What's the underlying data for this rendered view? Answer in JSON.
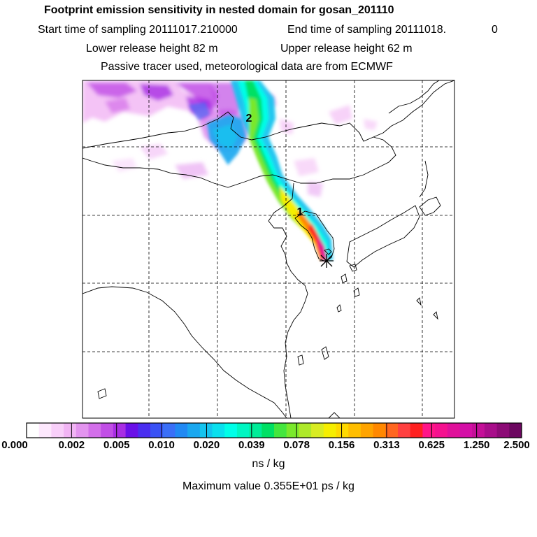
{
  "header": {
    "title": "Footprint emission sensitivity in nested domain for gosan_201110",
    "start_label": "Start time of sampling 20111017.210000",
    "end_label": "End time of sampling 20111018.",
    "end_value": "0",
    "lower_height": "Lower release height   82 m",
    "upper_height": "Upper release height   62 m",
    "tracer_note": "Passive tracer used, meteorological data are from ECMWF"
  },
  "map": {
    "markers": [
      {
        "label": "2",
        "kind": "age-class"
      },
      {
        "label": "1",
        "kind": "age-class"
      }
    ],
    "receptor": {
      "symbol": "asterisk",
      "name": "gosan"
    }
  },
  "colorbar": {
    "ticks": [
      "0.000",
      "0.002",
      "0.005",
      "0.010",
      "0.020",
      "0.039",
      "0.078",
      "0.156",
      "0.313",
      "0.625",
      "1.250",
      "2.500"
    ],
    "colors": [
      "#ffffff",
      "#fde8fd",
      "#f8cff9",
      "#f1b4f4",
      "#e394ef",
      "#d36fea",
      "#c14ee6",
      "#a82ee3",
      "#6a10e8",
      "#4a2ef0",
      "#3a52f5",
      "#3a6ff7",
      "#2189f3",
      "#1aa7ef",
      "#13c4ef",
      "#0ae0ee",
      "#00ffe8",
      "#00f6c2",
      "#00ec98",
      "#00e064",
      "#44e63e",
      "#7ae82c",
      "#aee92a",
      "#d8ec22",
      "#f6ee00",
      "#fed900",
      "#ffbe00",
      "#ffa400",
      "#ff8800",
      "#ff6620",
      "#ff4040",
      "#ff2020",
      "#ff1588",
      "#f5118f",
      "#e0109a",
      "#d40fa6",
      "#c40f98",
      "#a80d8a",
      "#8c0a76",
      "#6c0760"
    ],
    "unit": "ns / kg"
  },
  "footer": {
    "max_value": "Maximum value  0.355E+01 ps / kg"
  }
}
